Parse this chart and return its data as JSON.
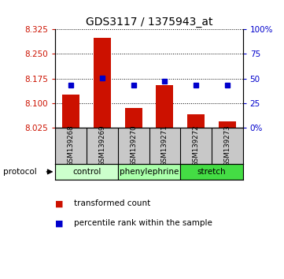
{
  "title": "GDS3117 / 1375943_at",
  "samples": [
    "GSM139268",
    "GSM139269",
    "GSM139270",
    "GSM139271",
    "GSM139272",
    "GSM139273"
  ],
  "red_values": [
    8.125,
    8.3,
    8.085,
    8.155,
    8.065,
    8.045
  ],
  "blue_values": [
    8.155,
    8.177,
    8.155,
    8.167,
    8.155,
    8.155
  ],
  "y_min": 8.025,
  "y_max": 8.325,
  "y_ticks": [
    8.025,
    8.1,
    8.175,
    8.25,
    8.325
  ],
  "y2_ticks": [
    0,
    25,
    50,
    75,
    100
  ],
  "y2_labels": [
    "0%",
    "25",
    "50",
    "75",
    "100%"
  ],
  "proto_colors": [
    "#ccffcc",
    "#aaffaa",
    "#44dd44"
  ],
  "proto_labels": [
    "control",
    "phenylephrine",
    "stretch"
  ],
  "proto_ranges": [
    [
      0,
      1
    ],
    [
      2,
      3
    ],
    [
      4,
      5
    ]
  ],
  "bar_color": "#cc1100",
  "square_color": "#0000cc",
  "background_color": "#ffffff",
  "label_area_bg": "#c8c8c8",
  "title_fontsize": 10,
  "tick_fontsize": 7.5,
  "legend_fontsize": 7.5
}
